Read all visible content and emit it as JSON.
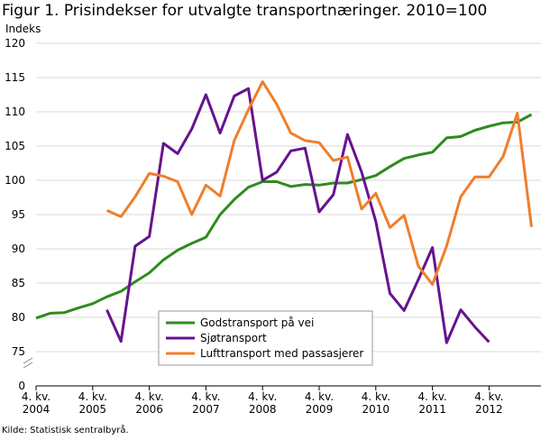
{
  "title": "Figur 1. Prisindekser for utvalgte transportnæringer. 2010=100",
  "source": "Kilde: Statistisk sentralbyrå.",
  "chart_data": {
    "type": "line",
    "title": "Figur 1. Prisindekser for utvalgte transportnæringer. 2010=100",
    "ylabel": "Indeks",
    "xlabel": "",
    "ylim": [
      75,
      120
    ],
    "y_axis_break": true,
    "y_ticks": [
      "120",
      "115",
      "110",
      "105",
      "100",
      "95",
      "90",
      "85",
      "80",
      "75",
      "0"
    ],
    "x_ticks": [
      {
        "line1": "4. kv.",
        "line2": "2004",
        "quarter_index": 0
      },
      {
        "line1": "4. kv.",
        "line2": "2005",
        "quarter_index": 4
      },
      {
        "line1": "4. kv.",
        "line2": "2006",
        "quarter_index": 8
      },
      {
        "line1": "4. kv.",
        "line2": "2007",
        "quarter_index": 12
      },
      {
        "line1": "4. kv.",
        "line2": "2008",
        "quarter_index": 16
      },
      {
        "line1": "4. kv.",
        "line2": "2009",
        "quarter_index": 20
      },
      {
        "line1": "4. kv.",
        "line2": "2010",
        "quarter_index": 24
      },
      {
        "line1": "4. kv.",
        "line2": "2011",
        "quarter_index": 28
      },
      {
        "line1": "4. kv.",
        "line2": "2012",
        "quarter_index": 32
      }
    ],
    "x_start": "2004Q4",
    "x_quarters": 36,
    "grid": true,
    "legend_position": "bottom-center",
    "series": [
      {
        "name": "Godstransport på vei",
        "color": "#2f8b1e",
        "start_index": 0,
        "values": [
          79.9,
          80.6,
          80.7,
          81.4,
          82.0,
          83.0,
          83.8,
          85.2,
          86.5,
          88.4,
          89.8,
          90.8,
          91.7,
          95.0,
          97.2,
          99.0,
          99.8,
          99.8,
          99.1,
          99.4,
          99.3,
          99.6,
          99.6,
          100.1,
          100.7,
          102.0,
          103.2,
          103.7,
          104.1,
          106.2,
          106.4,
          107.3,
          107.9,
          108.4,
          108.5,
          109.6
        ]
      },
      {
        "name": "Sjøtransport",
        "color": "#66138f",
        "start_index": 5,
        "values": [
          81.1,
          76.5,
          90.4,
          91.8,
          105.4,
          103.9,
          107.5,
          112.5,
          106.9,
          112.3,
          113.4,
          100.0,
          101.2,
          104.3,
          104.7,
          95.4,
          97.9,
          106.7,
          101.2,
          94.0,
          83.5,
          81.0,
          85.5,
          90.2,
          76.3,
          81.1,
          78.6,
          76.4
        ]
      },
      {
        "name": "Lufttransport med passasjerer",
        "color": "#f07e2b",
        "start_index": 5,
        "values": [
          95.6,
          94.7,
          97.6,
          101.0,
          100.6,
          99.8,
          95.0,
          99.3,
          97.7,
          105.8,
          110.3,
          114.4,
          111.1,
          106.9,
          105.8,
          105.5,
          102.9,
          103.4,
          95.8,
          98.1,
          93.1,
          94.9,
          87.5,
          84.8,
          90.4,
          97.6,
          100.5,
          100.5,
          103.5,
          109.8,
          93.2
        ]
      }
    ]
  }
}
